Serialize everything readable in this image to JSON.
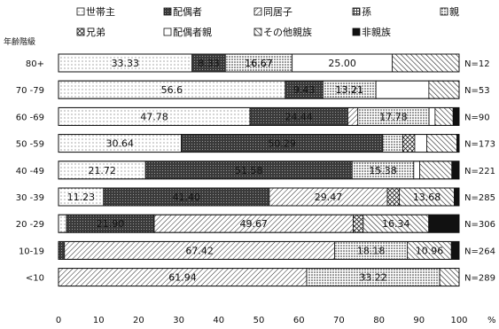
{
  "chart_data": {
    "type": "bar",
    "stacked": "100%",
    "orientation": "horizontal",
    "title": "",
    "ylabel": "年齢階級",
    "xlabel": "%",
    "xlim": [
      0,
      100
    ],
    "xticks": [
      0,
      10,
      20,
      30,
      40,
      50,
      60,
      70,
      80,
      90,
      100
    ],
    "legend_position": "top",
    "categories": [
      "80+",
      "70 -79",
      "60 -69",
      "50 -59",
      "40 -49",
      "30 -39",
      "20 -29",
      "10-19",
      "<10"
    ],
    "n_labels": [
      "N=12",
      "N=53",
      "N=90",
      "N=173",
      "N=221",
      "N=285",
      "N=306",
      "N=264",
      "N=289"
    ],
    "series": [
      {
        "name": "世帯主",
        "values": [
          33.33,
          56.6,
          47.78,
          30.64,
          21.72,
          11.23,
          2.0,
          0.0,
          0.0
        ]
      },
      {
        "name": "配偶者",
        "values": [
          8.33,
          9.43,
          24.44,
          50.29,
          51.58,
          41.4,
          21.9,
          1.5,
          0.0
        ]
      },
      {
        "name": "同居子",
        "values": [
          0.0,
          0.0,
          2.5,
          0.0,
          0.0,
          29.47,
          49.67,
          67.42,
          61.94
        ]
      },
      {
        "name": "孫",
        "values": [
          0.0,
          0.0,
          0.0,
          0.0,
          0.0,
          0.0,
          0.0,
          0.0,
          0.0
        ]
      },
      {
        "name": "親",
        "values": [
          16.67,
          13.21,
          17.78,
          5.0,
          15.38,
          0.0,
          0.0,
          18.18,
          33.22
        ]
      },
      {
        "name": "兄弟",
        "values": [
          0.0,
          0.0,
          0.0,
          3.0,
          0.0,
          3.0,
          2.5,
          0.0,
          0.0
        ]
      },
      {
        "name": "配偶者親",
        "values": [
          25.0,
          13.21,
          1.5,
          3.0,
          1.5,
          0.0,
          0.0,
          0.0,
          0.0
        ]
      },
      {
        "name": "その他親族",
        "values": [
          16.67,
          7.55,
          4.5,
          7.5,
          8.0,
          13.68,
          16.34,
          10.96,
          4.84
        ]
      },
      {
        "name": "非親族",
        "values": [
          0.0,
          0.0,
          1.5,
          0.57,
          1.82,
          1.22,
          7.59,
          1.94,
          0.0
        ]
      }
    ],
    "data_labels": [
      [
        "33.33",
        "8.33",
        "16.67",
        "25.00",
        "16.67"
      ],
      [
        "56.6",
        "9.43",
        "13.21",
        "13.21"
      ],
      [
        "47.78",
        "24.44",
        "17.78"
      ],
      [
        "30.64",
        "50.29"
      ],
      [
        "21.72",
        "51.58",
        "15.38"
      ],
      [
        "11.23",
        "41.40",
        "29.47",
        "13.68"
      ],
      [
        "21.90",
        "49.67",
        "16.34"
      ],
      [
        "67.42",
        "18.18",
        "10.96"
      ],
      [
        "61.94",
        "33.22"
      ]
    ]
  }
}
